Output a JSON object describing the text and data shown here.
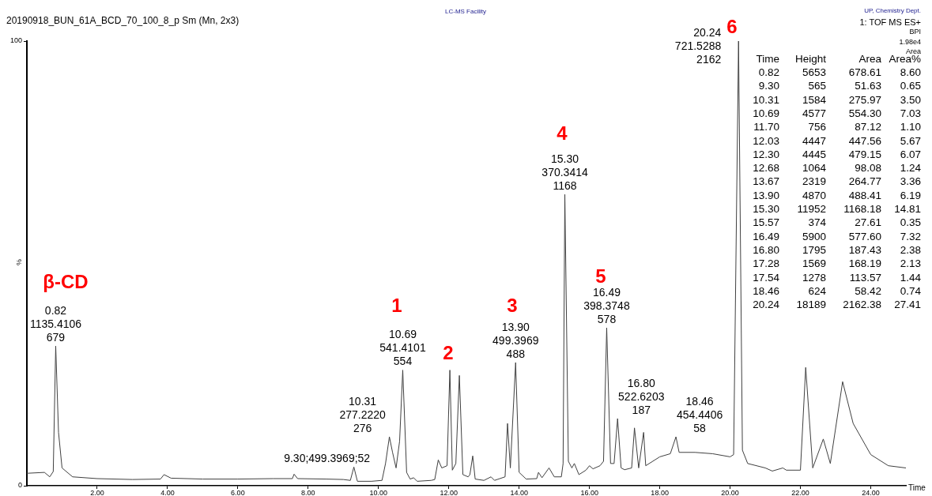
{
  "chart_data": {
    "type": "line",
    "title": "20190918_BUN_61A_BCD_70_100_8_p Sm (Mn, 2x3)",
    "subtitle": "LC-MS Facility",
    "xlabel": "Time",
    "ylabel": "%",
    "x": [
      0,
      0.5,
      0.65,
      0.75,
      0.82,
      0.9,
      1.0,
      1.3,
      2.0,
      3.0,
      3.8,
      3.9,
      4.1,
      5.0,
      6.0,
      7.0,
      7.55,
      7.6,
      7.7,
      8.5,
      9.0,
      9.2,
      9.3,
      9.4,
      9.8,
      10.1,
      10.2,
      10.31,
      10.4,
      10.5,
      10.6,
      10.69,
      10.8,
      10.9,
      11.0,
      11.1,
      11.5,
      11.6,
      11.7,
      11.8,
      11.95,
      12.03,
      12.1,
      12.2,
      12.3,
      12.4,
      12.55,
      12.6,
      12.68,
      12.75,
      13.0,
      13.2,
      13.3,
      13.6,
      13.67,
      13.75,
      13.9,
      14.0,
      14.2,
      14.5,
      14.55,
      14.65,
      14.85,
      15.0,
      15.2,
      15.25,
      15.3,
      15.4,
      15.5,
      15.57,
      15.7,
      15.9,
      16.0,
      16.1,
      16.3,
      16.4,
      16.49,
      16.6,
      16.7,
      16.8,
      16.9,
      17.0,
      17.2,
      17.28,
      17.4,
      17.54,
      17.6,
      18.0,
      18.3,
      18.46,
      18.55,
      19.0,
      19.5,
      20.0,
      20.1,
      20.24,
      20.35,
      20.5,
      21.0,
      21.2,
      21.5,
      21.6,
      22.0,
      22.15,
      22.35,
      22.65,
      22.85,
      23.2,
      23.5,
      24.0,
      24.5,
      25.0
    ],
    "series": [
      {
        "color": "#404040",
        "values": [
          2.8,
          3.0,
          2.0,
          3.2,
          31.4,
          12,
          4,
          2.0,
          1.6,
          1.4,
          1.5,
          2.5,
          1.7,
          1.5,
          1.5,
          1.6,
          1.6,
          2.6,
          1.6,
          1.5,
          1.4,
          1.2,
          4.2,
          1.0,
          1.0,
          1.2,
          5,
          11.0,
          7.5,
          4,
          10,
          26.0,
          3,
          1.5,
          1.8,
          1.0,
          1.2,
          1.4,
          5.8,
          4.0,
          4.5,
          26,
          3.5,
          5,
          24.8,
          2.5,
          2.0,
          2.5,
          6.7,
          1.5,
          1.2,
          2.0,
          1.2,
          2.0,
          14.0,
          4,
          27.7,
          3.0,
          1.5,
          1.6,
          3.0,
          1.8,
          4,
          2.0,
          2.0,
          5,
          65.5,
          5.5,
          4,
          5,
          2.5,
          3.5,
          4.5,
          3.8,
          4.5,
          5.5,
          35.5,
          5.0,
          5,
          15.1,
          4,
          3.6,
          4,
          13,
          4,
          12,
          4.5,
          6.5,
          7.2,
          11,
          7.5,
          7.5,
          7.2,
          6.5,
          7,
          100,
          8,
          5,
          4,
          3.3,
          4,
          3.5,
          3.5,
          26.6,
          4,
          10.5,
          5,
          23.4,
          14,
          7,
          4.5,
          4
        ]
      }
    ],
    "xlim": [
      0,
      25
    ],
    "ylim": [
      0,
      100
    ],
    "xticks": [
      {
        "value": 2,
        "label": "2.00"
      },
      {
        "value": 4,
        "label": "4.00"
      },
      {
        "value": 6,
        "label": "6.00"
      },
      {
        "value": 8,
        "label": "8.00"
      },
      {
        "value": 10,
        "label": "10.00"
      },
      {
        "value": 12,
        "label": "12.00"
      },
      {
        "value": 14,
        "label": "14.00"
      },
      {
        "value": 16,
        "label": "16.00"
      },
      {
        "value": 18,
        "label": "18.00"
      },
      {
        "value": 20,
        "label": "20.00"
      },
      {
        "value": 22,
        "label": "22.00"
      },
      {
        "value": 24,
        "label": "24.00"
      }
    ],
    "yticks": [
      0,
      100
    ],
    "grid": false,
    "legend": false,
    "marker": "none",
    "line_style": "solid",
    "annotations": [
      {
        "text": "0.82\n1135.4106\n679",
        "x": 0.82,
        "y": 31.4
      },
      {
        "text": "9.30;499.3969;52",
        "x": 9.3,
        "y": 4.2
      },
      {
        "text": "10.31\n277.2220\n276",
        "x": 10.31,
        "y": 11.0
      },
      {
        "text": "10.69\n541.4101\n554",
        "x": 10.69,
        "y": 26.0
      },
      {
        "text": "13.90\n499.3969\n488",
        "x": 13.9,
        "y": 27.7
      },
      {
        "text": "15.30\n370.3414\n1168",
        "x": 15.3,
        "y": 65.5
      },
      {
        "text": "16.49\n398.3748\n578",
        "x": 16.49,
        "y": 35.5
      },
      {
        "text": "16.80\n522.6203\n187",
        "x": 16.8,
        "y": 15.1
      },
      {
        "text": "18.46\n454.4406\n58",
        "x": 18.46,
        "y": 11
      },
      {
        "text": "20.24\n721.5288\n2162",
        "x": 20.24,
        "y": 100
      },
      "β-CD",
      "1",
      "2",
      "3",
      "4",
      "5",
      "6",
      "UP, Chemistry Dept.",
      "1: TOF MS ES+",
      "BPI",
      "1.98e4",
      "Area",
      "Time\tHeight\tArea\tArea%",
      "0.82\t5653\t678.61\t8.60",
      "9.30\t565\t51.63\t0.65",
      "10.31\t1584\t275.97\t3.50",
      "10.69\t4577\t554.30\t7.03",
      "11.70\t756\t87.12\t1.10",
      "12.03\t4447\t447.56\t5.67",
      "12.30\t4445\t479.15\t6.07",
      "12.68\t1064\t98.08\t1.24",
      "13.67\t2319\t264.77\t3.36",
      "13.90\t4870\t488.41\t6.19",
      "15.30\t11952\t1168.18\t14.81",
      "15.57\t374\t27.61\t0.35",
      "16.49\t5900\t577.60\t7.32",
      "16.80\t1795\t187.43\t2.38",
      "17.28\t1569\t168.19\t2.13",
      "17.54\t1278\t113.57\t1.44",
      "18.46\t624\t58.42\t0.74",
      "20.24\t18189\t2162.38\t27.41"
    ]
  }
}
